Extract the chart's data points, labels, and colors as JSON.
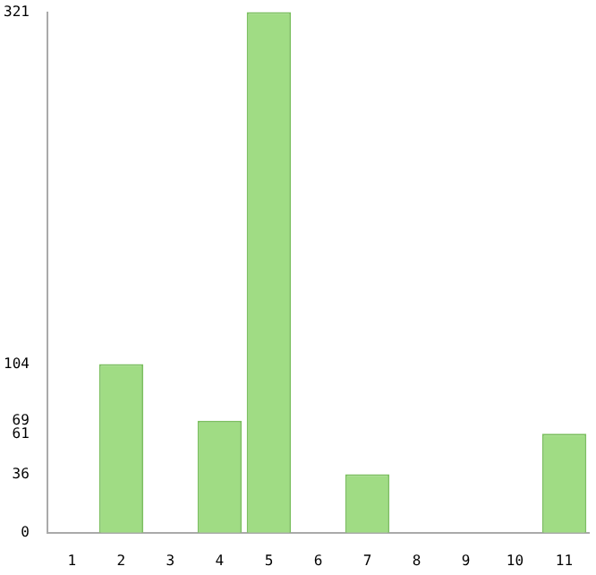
{
  "chart_data": {
    "type": "bar",
    "categories": [
      "1",
      "2",
      "3",
      "4",
      "5",
      "6",
      "7",
      "8",
      "9",
      "10",
      "11"
    ],
    "values": [
      0,
      104,
      0,
      69,
      321,
      0,
      36,
      0,
      0,
      0,
      61
    ],
    "color": "#a0dc84",
    "ylim": [
      0,
      321
    ],
    "yticks": [
      0,
      36,
      61,
      69,
      104,
      321
    ],
    "grid": false,
    "legend": false
  }
}
